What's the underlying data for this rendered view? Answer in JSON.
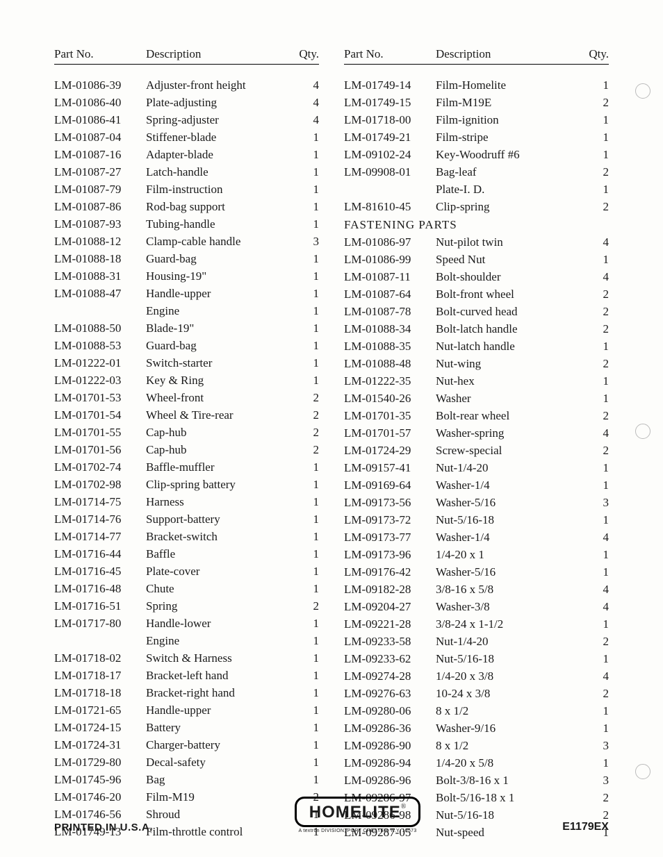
{
  "headers": {
    "part": "Part No.",
    "desc": "Description",
    "qty": "Qty."
  },
  "section_fastening": "FASTENING PARTS",
  "left": [
    {
      "p": "LM-01086-39",
      "d": "Adjuster-front height",
      "q": "4"
    },
    {
      "p": "LM-01086-40",
      "d": "Plate-adjusting",
      "q": "4"
    },
    {
      "p": "LM-01086-41",
      "d": "Spring-adjuster",
      "q": "4"
    },
    {
      "p": "LM-01087-04",
      "d": "Stiffener-blade",
      "q": "1"
    },
    {
      "p": "LM-01087-16",
      "d": "Adapter-blade",
      "q": "1"
    },
    {
      "p": "LM-01087-27",
      "d": "Latch-handle",
      "q": "1"
    },
    {
      "p": "LM-01087-79",
      "d": "Film-instruction",
      "q": "1"
    },
    {
      "p": "LM-01087-86",
      "d": "Rod-bag support",
      "q": "1"
    },
    {
      "p": "LM-01087-93",
      "d": "Tubing-handle",
      "q": "1"
    },
    {
      "p": "LM-01088-12",
      "d": "Clamp-cable handle",
      "q": "3"
    },
    {
      "p": "LM-01088-18",
      "d": "Guard-bag",
      "q": "1"
    },
    {
      "p": "LM-01088-31",
      "d": "Housing-19\"",
      "q": "1"
    },
    {
      "p": "LM-01088-47",
      "d": "Handle-upper",
      "q": "1"
    },
    {
      "p": "",
      "d": "Engine",
      "q": "1"
    },
    {
      "p": "LM-01088-50",
      "d": "Blade-19\"",
      "q": "1"
    },
    {
      "p": "LM-01088-53",
      "d": "Guard-bag",
      "q": "1"
    },
    {
      "p": "LM-01222-01",
      "d": "Switch-starter",
      "q": "1"
    },
    {
      "p": "LM-01222-03",
      "d": "Key & Ring",
      "q": "1"
    },
    {
      "p": "LM-01701-53",
      "d": "Wheel-front",
      "q": "2"
    },
    {
      "p": "LM-01701-54",
      "d": "Wheel & Tire-rear",
      "q": "2"
    },
    {
      "p": "LM-01701-55",
      "d": "Cap-hub",
      "q": "2"
    },
    {
      "p": "LM-01701-56",
      "d": "Cap-hub",
      "q": "2"
    },
    {
      "p": "LM-01702-74",
      "d": "Baffle-muffler",
      "q": "1"
    },
    {
      "p": "LM-01702-98",
      "d": "Clip-spring battery",
      "q": "1"
    },
    {
      "p": "LM-01714-75",
      "d": "Harness",
      "q": "1"
    },
    {
      "p": "LM-01714-76",
      "d": "Support-battery",
      "q": "1"
    },
    {
      "p": "LM-01714-77",
      "d": "Bracket-switch",
      "q": "1"
    },
    {
      "p": "LM-01716-44",
      "d": "Baffle",
      "q": "1"
    },
    {
      "p": "LM-01716-45",
      "d": "Plate-cover",
      "q": "1"
    },
    {
      "p": "LM-01716-48",
      "d": "Chute",
      "q": "1"
    },
    {
      "p": "LM-01716-51",
      "d": "Spring",
      "q": "2"
    },
    {
      "p": "LM-01717-80",
      "d": "Handle-lower",
      "q": "1"
    },
    {
      "p": "",
      "d": "Engine",
      "q": "1"
    },
    {
      "p": "LM-01718-02",
      "d": "Switch & Harness",
      "q": "1"
    },
    {
      "p": "LM-01718-17",
      "d": "Bracket-left hand",
      "q": "1"
    },
    {
      "p": "LM-01718-18",
      "d": "Bracket-right hand",
      "q": "1"
    },
    {
      "p": "LM-01721-65",
      "d": "Handle-upper",
      "q": "1"
    },
    {
      "p": "LM-01724-15",
      "d": "Battery",
      "q": "1"
    },
    {
      "p": "LM-01724-31",
      "d": "Charger-battery",
      "q": "1"
    },
    {
      "p": "LM-01729-80",
      "d": "Decal-safety",
      "q": "1"
    },
    {
      "p": "LM-01745-96",
      "d": "Bag",
      "q": "1"
    },
    {
      "p": "LM-01746-20",
      "d": "Film-M19",
      "q": "2"
    },
    {
      "p": "LM-01746-56",
      "d": "Shroud",
      "q": "1"
    },
    {
      "p": "LM-01749-13",
      "d": "Film-throttle control",
      "q": "1"
    }
  ],
  "right_top": [
    {
      "p": "LM-01749-14",
      "d": "Film-Homelite",
      "q": "1"
    },
    {
      "p": "LM-01749-15",
      "d": "Film-M19E",
      "q": "2"
    },
    {
      "p": "LM-01718-00",
      "d": "Film-ignition",
      "q": "1"
    },
    {
      "p": "LM-01749-21",
      "d": "Film-stripe",
      "q": "1"
    },
    {
      "p": "LM-09102-24",
      "d": "Key-Woodruff #6",
      "q": "1"
    },
    {
      "p": "LM-09908-01",
      "d": "Bag-leaf",
      "q": "2"
    },
    {
      "p": "",
      "d": "Plate-I. D.",
      "q": "1"
    },
    {
      "p": "LM-81610-45",
      "d": "Clip-spring",
      "q": "2"
    }
  ],
  "right_fastening": [
    {
      "p": "LM-01086-97",
      "d": "Nut-pilot twin",
      "q": "4"
    },
    {
      "p": "LM-01086-99",
      "d": "Speed Nut",
      "q": "1"
    },
    {
      "p": "LM-01087-11",
      "d": "Bolt-shoulder",
      "q": "4"
    },
    {
      "p": "LM-01087-64",
      "d": "Bolt-front wheel",
      "q": "2"
    },
    {
      "p": "LM-01087-78",
      "d": "Bolt-curved head",
      "q": "2"
    },
    {
      "p": "LM-01088-34",
      "d": "Bolt-latch handle",
      "q": "2"
    },
    {
      "p": "LM-01088-35",
      "d": "Nut-latch handle",
      "q": "1"
    },
    {
      "p": "LM-01088-48",
      "d": "Nut-wing",
      "q": "2"
    },
    {
      "p": "LM-01222-35",
      "d": "Nut-hex",
      "q": "1"
    },
    {
      "p": "LM-01540-26",
      "d": "Washer",
      "q": "1"
    },
    {
      "p": "LM-01701-35",
      "d": "Bolt-rear wheel",
      "q": "2"
    },
    {
      "p": "LM-01701-57",
      "d": "Washer-spring",
      "q": "4"
    },
    {
      "p": "LM-01724-29",
      "d": "Screw-special",
      "q": "2"
    },
    {
      "p": "LM-09157-41",
      "d": "Nut-1/4-20",
      "q": "1"
    },
    {
      "p": "LM-09169-64",
      "d": "Washer-1/4",
      "q": "1"
    },
    {
      "p": "LM-09173-56",
      "d": "Washer-5/16",
      "q": "3"
    },
    {
      "p": "LM-09173-72",
      "d": "Nut-5/16-18",
      "q": "1"
    },
    {
      "p": "LM-09173-77",
      "d": "Washer-1/4",
      "q": "4"
    },
    {
      "p": "LM-09173-96",
      "d": "1/4-20 x 1",
      "q": "1"
    },
    {
      "p": "LM-09176-42",
      "d": "Washer-5/16",
      "q": "1"
    },
    {
      "p": "LM-09182-28",
      "d": "3/8-16 x 5/8",
      "q": "4"
    },
    {
      "p": "LM-09204-27",
      "d": "Washer-3/8",
      "q": "4"
    },
    {
      "p": "LM-09221-28",
      "d": "3/8-24 x 1-1/2",
      "q": "1"
    },
    {
      "p": "LM-09233-58",
      "d": "Nut-1/4-20",
      "q": "2"
    },
    {
      "p": "LM-09233-62",
      "d": "Nut-5/16-18",
      "q": "1"
    },
    {
      "p": "LM-09274-28",
      "d": "1/4-20 x 3/8",
      "q": "4"
    },
    {
      "p": "LM-09276-63",
      "d": "10-24 x 3/8",
      "q": "2"
    },
    {
      "p": "LM-09280-06",
      "d": "8 x 1/2",
      "q": "1"
    },
    {
      "p": "LM-09286-36",
      "d": "Washer-9/16",
      "q": "1"
    },
    {
      "p": "LM-09286-90",
      "d": "8 x 1/2",
      "q": "3"
    },
    {
      "p": "LM-09286-94",
      "d": "1/4-20 x 5/8",
      "q": "1"
    },
    {
      "p": "LM-09286-96",
      "d": "Bolt-3/8-16 x 1",
      "q": "3"
    },
    {
      "p": "LM-09286-97",
      "d": "Bolt-5/16-18 x 1",
      "q": "2"
    },
    {
      "p": "LM-09286-98",
      "d": "Nut-5/16-18",
      "q": "2"
    },
    {
      "p": "LM-09287-05",
      "d": "Nut-speed",
      "q": "1"
    }
  ],
  "footer": {
    "left": "PRINTED IN U.S.A.",
    "logo": "HOMELITE",
    "logo_reg": "®",
    "logo_sub": "A textron DIVISION, PORT CHESTER, N.Y. 10573",
    "right": "E1179EX"
  }
}
